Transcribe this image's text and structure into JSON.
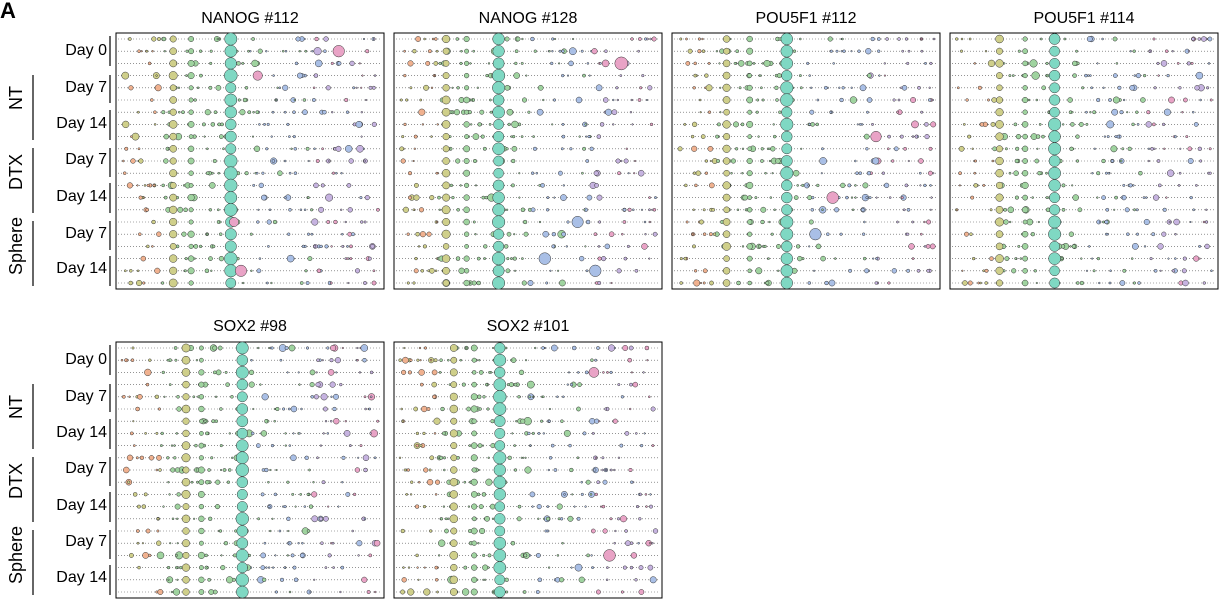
{
  "figure": {
    "panel_letter": "A",
    "row_labels": [
      "Day 0",
      "Day 7",
      "Day 14",
      "Day 7",
      "Day 14",
      "Day 7",
      "Day 14"
    ],
    "group_labels": [
      "NT",
      "DTX",
      "Sphere"
    ]
  },
  "chart_data": [
    {
      "type": "scatter",
      "title": "NANOG #112"
    },
    {
      "type": "scatter",
      "title": "NANOG #128"
    },
    {
      "type": "scatter",
      "title": "POU5F1 #112"
    },
    {
      "type": "scatter",
      "title": "POU5F1 #114"
    },
    {
      "type": "scatter",
      "title": "SOX2 #98"
    },
    {
      "type": "scatter",
      "title": "SOX2 #101"
    }
  ],
  "colors": {
    "teal": "#7fd8c3",
    "olive": "#cfcf8a",
    "green": "#9fd39f",
    "blue": "#a9bfe6",
    "purple": "#c6b3e0",
    "pink": "#e9a3c6",
    "salmon": "#f0b18f",
    "stroke": "#333333",
    "dotline": "#555555"
  }
}
